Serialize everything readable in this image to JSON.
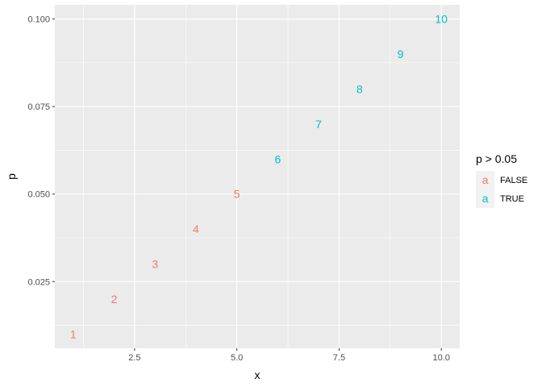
{
  "chart_data": {
    "type": "scatter",
    "xlabel": "x",
    "ylabel": "p",
    "xlim": [
      0.55,
      10.45
    ],
    "ylim": [
      0.00595,
      0.10405
    ],
    "x_ticks": [
      2.5,
      5.0,
      7.5,
      10.0
    ],
    "x_tick_labels": [
      "2.5",
      "5.0",
      "7.5",
      "10.0"
    ],
    "y_ticks": [
      0.025,
      0.05,
      0.075,
      0.1
    ],
    "y_tick_labels": [
      "0.025",
      "0.050",
      "0.075",
      "0.100"
    ],
    "grid": true,
    "legend": {
      "position": "right",
      "title": "p > 0.05",
      "entries": [
        {
          "label": "FALSE",
          "glyph": "a",
          "color": "#F8766D"
        },
        {
          "label": "TRUE",
          "glyph": "a",
          "color": "#00BFC4"
        }
      ]
    },
    "points": [
      {
        "x": 1,
        "y": 0.01,
        "label": "1",
        "group": "FALSE"
      },
      {
        "x": 2,
        "y": 0.02,
        "label": "2",
        "group": "FALSE"
      },
      {
        "x": 3,
        "y": 0.03,
        "label": "3",
        "group": "FALSE"
      },
      {
        "x": 4,
        "y": 0.04,
        "label": "4",
        "group": "FALSE"
      },
      {
        "x": 5,
        "y": 0.05,
        "label": "5",
        "group": "FALSE"
      },
      {
        "x": 6,
        "y": 0.06,
        "label": "6",
        "group": "TRUE"
      },
      {
        "x": 7,
        "y": 0.07,
        "label": "7",
        "group": "TRUE"
      },
      {
        "x": 8,
        "y": 0.08,
        "label": "8",
        "group": "TRUE"
      },
      {
        "x": 9,
        "y": 0.09,
        "label": "9",
        "group": "TRUE"
      },
      {
        "x": 10,
        "y": 0.1,
        "label": "10",
        "group": "TRUE"
      }
    ],
    "colors": {
      "FALSE": "#F8766D",
      "TRUE": "#00BFC4",
      "panel_background": "#EBEBEB",
      "grid_major": "#FFFFFF"
    }
  }
}
